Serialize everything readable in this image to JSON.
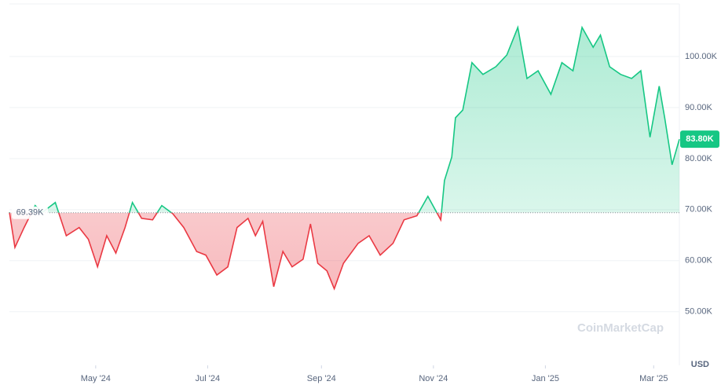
{
  "chart_data": {
    "type": "line",
    "x": [
      0,
      3,
      8,
      14,
      18,
      25,
      31,
      38,
      43,
      48,
      53,
      58,
      63,
      67,
      72,
      78,
      83,
      89,
      95,
      102,
      107,
      113,
      119,
      124,
      130,
      134,
      138,
      144,
      149,
      154,
      160,
      164,
      168,
      173,
      177,
      182,
      190,
      196,
      202,
      209,
      215,
      222,
      228,
      235,
      237,
      241,
      243,
      247,
      252,
      258,
      265,
      271,
      277,
      282,
      288,
      295,
      301,
      307,
      312,
      318,
      322,
      327,
      333,
      339,
      344,
      349,
      354,
      357,
      361,
      365
    ],
    "series": [
      {
        "values": [
          69500,
          62600,
          66500,
          70800,
          69500,
          71400,
          64900,
          66500,
          64200,
          58800,
          64900,
          61500,
          66500,
          71400,
          68300,
          68000,
          70800,
          69200,
          66500,
          61800,
          61100,
          57200,
          58800,
          66500,
          68300,
          64900,
          67700,
          54900,
          61800,
          58800,
          60300,
          67200,
          59500,
          58000,
          54500,
          59500,
          63400,
          64900,
          61100,
          63400,
          68000,
          68800,
          72600,
          68000,
          75700,
          80300,
          88000,
          89500,
          98800,
          96500,
          98000,
          100300,
          105700,
          95700,
          97200,
          92600,
          98800,
          97200,
          105700,
          101800,
          104200,
          98000,
          96500,
          95700,
          97200,
          84200,
          94200,
          88000,
          78800,
          83800
        ]
      }
    ],
    "up_color": "#16c784",
    "down_color": "#ea3943",
    "baseline": {
      "value": 69390,
      "label": "69.39K"
    },
    "current_price": {
      "value": 83800,
      "label": "83.80K"
    },
    "currency": "USD",
    "watermark": "CoinMarketCap",
    "xlim": [
      0,
      365
    ],
    "xticks": [
      {
        "value": 47,
        "label": "May '24"
      },
      {
        "value": 108,
        "label": "Jul '24"
      },
      {
        "value": 170,
        "label": "Sep '24"
      },
      {
        "value": 231,
        "label": "Nov '24"
      },
      {
        "value": 292,
        "label": "Jan '25"
      },
      {
        "value": 351,
        "label": "Mar '25"
      }
    ],
    "ylim": [
      39500,
      110300
    ],
    "yticks": [
      {
        "value": 50000,
        "label": "50.00K"
      },
      {
        "value": 60000,
        "label": "60.00K"
      },
      {
        "value": 70000,
        "label": "70.00K"
      },
      {
        "value": 80000,
        "label": "80.00K"
      },
      {
        "value": 90000,
        "label": "90.00K"
      },
      {
        "value": 100000,
        "label": "100.00K"
      }
    ],
    "grid": true
  }
}
